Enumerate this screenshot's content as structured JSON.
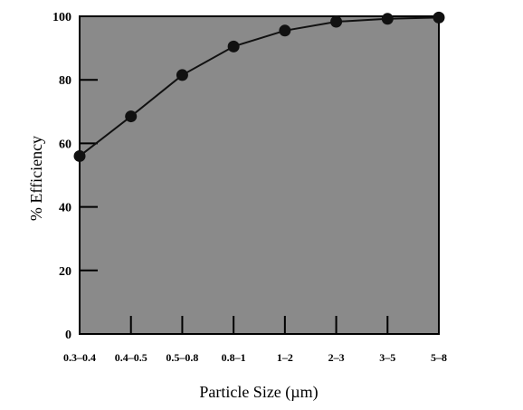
{
  "chart_data": {
    "type": "line",
    "title": "",
    "xlabel": "Particle Size (µm)",
    "ylabel": "% Efficiency",
    "categories": [
      "0.3–0.4",
      "0.4–0.5",
      "0.5–0.8",
      "0.8–1",
      "1–2",
      "2–3",
      "3–5",
      "5–8"
    ],
    "series": [
      {
        "values": [
          56,
          68.5,
          81.5,
          90.5,
          95.5,
          98.3,
          99.2,
          99.6
        ]
      }
    ],
    "ylim": [
      0,
      100
    ],
    "yticks": [
      0,
      20,
      40,
      60,
      80,
      100
    ],
    "grid": false,
    "colors": {
      "plot_background": "#8a8a8a",
      "line": "#111111",
      "marker": "#111111",
      "axis": "#000000"
    }
  }
}
